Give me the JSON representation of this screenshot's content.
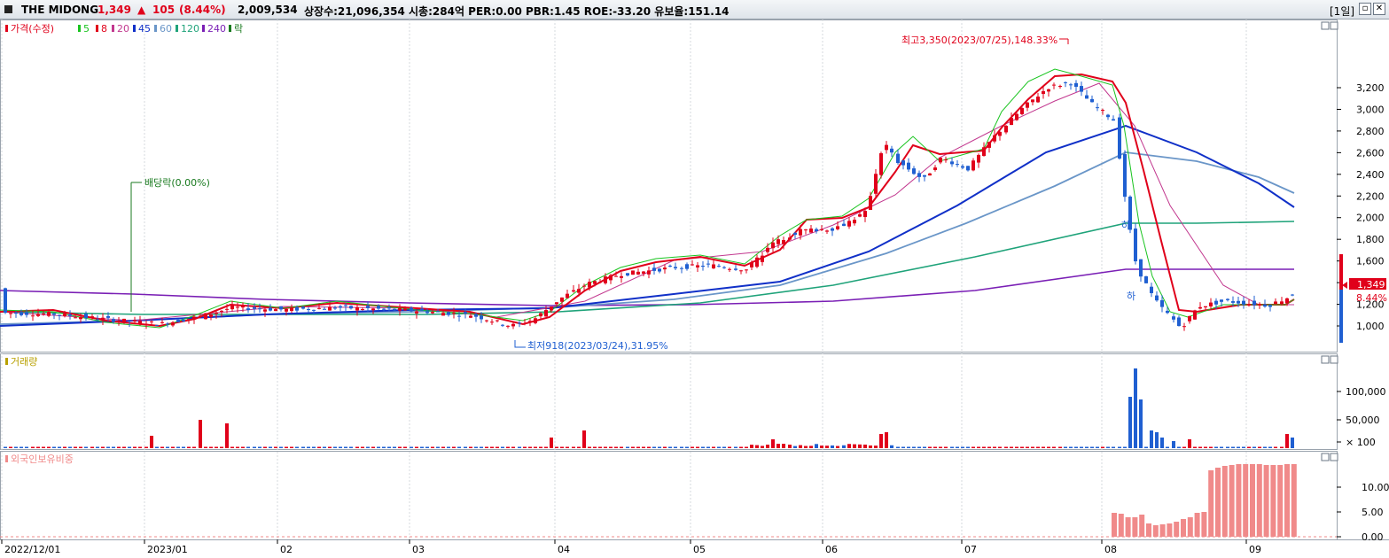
{
  "header": {
    "name": "THE MIDONG",
    "price": "1,349",
    "arrow": "▲",
    "change": "105",
    "change_pct": "(8.44%)",
    "volume": "2,009,534",
    "stats": "상장수:21,096,354  시총:284억  PER:0.00  PBR:1.45  ROE:-33.20  유보율:151.14",
    "period": "[1일]",
    "restore_icon": "restore-icon",
    "close_icon": "close-icon"
  },
  "colors": {
    "up": "#e0001a",
    "down": "#1f5fd1",
    "ma5": "#19c41f",
    "ma8": "#e0001a",
    "ma20": "#c2388f",
    "ma45": "#1030c8",
    "ma60": "#6a96c8",
    "ma120": "#1fa37a",
    "ma240": "#7a1fb5",
    "foreign": "#f08a8a"
  },
  "legend": {
    "price": "가격(수정)",
    "ma5": "5",
    "ma8": "8",
    "ma20": "20",
    "ma45": "45",
    "ma60": "60",
    "ma120": "120",
    "ma240": "240",
    "ex": "락"
  },
  "annotations": {
    "high": "최고3,350(2023/07/25),148.33%",
    "low": "최저918(2023/03/24),31.95%",
    "dividend": "배당락(0.00%)",
    "limit_down_1": "하",
    "limit_down_2": "하"
  },
  "current": {
    "price": "1,349",
    "pct": "8.44%"
  },
  "panels": {
    "volume_title": "거래량",
    "foreign_title": "외국인보유비중"
  },
  "chart_data": {
    "type": "candlestick",
    "price_axis": [
      1000,
      1200,
      1400,
      1600,
      1800,
      2000,
      2200,
      2400,
      2600,
      2800,
      3000,
      3200
    ],
    "price_ticks": [
      "1,000",
      "1,200",
      "1,400",
      "1,600",
      "1,800",
      "2,000",
      "2,200",
      "2,400",
      "2,600",
      "2,800",
      "3,000",
      "3,200"
    ],
    "volume_ticks": [
      "100,000",
      "50,000",
      "× 100"
    ],
    "foreign_ticks": [
      "10.00",
      "5.00",
      "0.00"
    ],
    "date_labels": [
      "2022/12/01",
      "2023/01",
      "02",
      "03",
      "04",
      "05",
      "06",
      "07",
      "08",
      "09"
    ]
  }
}
